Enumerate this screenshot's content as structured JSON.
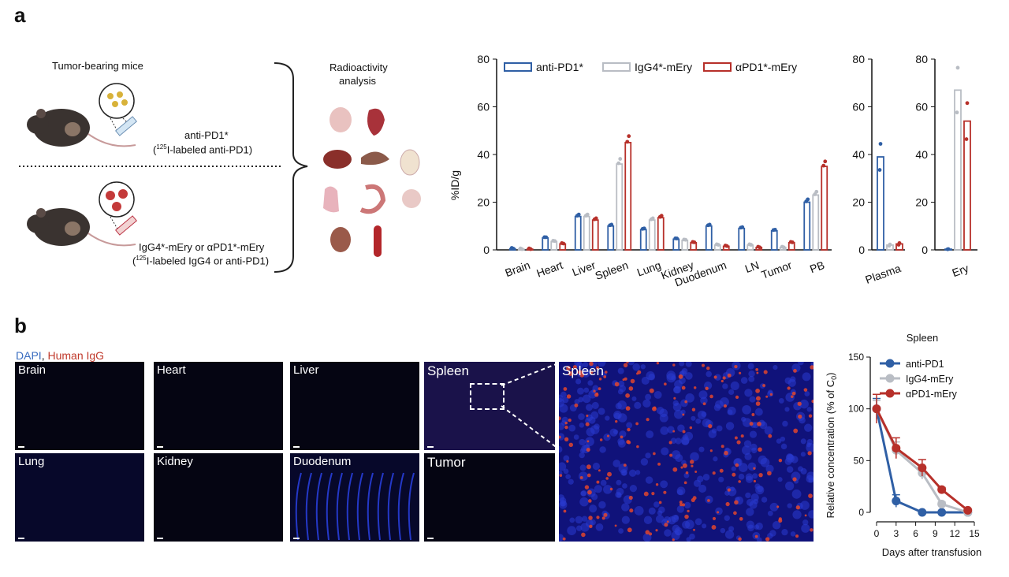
{
  "panels": {
    "a": "a",
    "b": "b"
  },
  "schematic": {
    "tumor_mice": "Tumor-bearing mice",
    "radio_line1": "Radioactivity",
    "radio_line2": "analysis",
    "anti_line1": "anti-PD1*",
    "anti_line2_pre": "(",
    "anti_line2_sup": "125",
    "anti_line2_post": "I-labeled anti-PD1)",
    "ery_line1": "IgG4*-mEry or αPD1*-mEry",
    "ery_line2_pre": "(",
    "ery_line2_sup": "125",
    "ery_line2_post": "I-labeled IgG4 or anti-PD1)"
  },
  "colors": {
    "anti": "#2f5fa5",
    "igg": "#b9bdc4",
    "apd": "#b7302a"
  },
  "chart_data": [
    {
      "type": "bar",
      "title": "",
      "ylabel": "%ID/g",
      "ylim": [
        0,
        80
      ],
      "yticks": [
        0,
        20,
        40,
        60,
        80
      ],
      "categories": [
        "Brain",
        "Heart",
        "Liver",
        "Spleen",
        "Lung",
        "Kidney",
        "Duodenum",
        "LN",
        "Tumor",
        "PB"
      ],
      "series": [
        {
          "name": "anti-PD1*",
          "values": [
            0.5,
            5,
            14,
            10,
            8.5,
            4.5,
            10,
            9,
            8,
            20
          ]
        },
        {
          "name": "IgG4*-mEry",
          "values": [
            0.3,
            3.5,
            14,
            36,
            12.5,
            4,
            2,
            2,
            1,
            23
          ]
        },
        {
          "name": "αPD1*-mEry",
          "values": [
            0.3,
            2.5,
            12.5,
            45,
            13.5,
            3,
            1.5,
            1,
            3,
            35
          ]
        }
      ]
    },
    {
      "type": "bar",
      "ylim": [
        0,
        80
      ],
      "yticks": [
        0,
        20,
        40,
        60,
        80
      ],
      "categories": [
        "Plasma"
      ],
      "series": [
        {
          "name": "anti-PD1*",
          "values": [
            39
          ]
        },
        {
          "name": "IgG4*-mEry",
          "values": [
            2
          ]
        },
        {
          "name": "αPD1*-mEry",
          "values": [
            2.5
          ]
        }
      ]
    },
    {
      "type": "bar",
      "ylim": [
        0,
        80
      ],
      "yticks": [
        0,
        20,
        40,
        60,
        80
      ],
      "categories": [
        "Ery"
      ],
      "series": [
        {
          "name": "anti-PD1*",
          "values": [
            0.3
          ]
        },
        {
          "name": "IgG4*-mEry",
          "values": [
            67
          ]
        },
        {
          "name": "αPD1*-mEry",
          "values": [
            54
          ]
        }
      ]
    },
    {
      "type": "line",
      "title": "Spleen",
      "xlabel": "Days after transfusion",
      "ylabel_pre": "Relative concentration (% of C",
      "ylabel_sub": "0",
      "ylabel_post": ")",
      "xlim": [
        0,
        15
      ],
      "ylim": [
        0,
        150
      ],
      "xticks": [
        0,
        3,
        6,
        9,
        12,
        15
      ],
      "yticks": [
        0,
        50,
        100,
        150
      ],
      "series": [
        {
          "name": "anti-PD1",
          "x": [
            0,
            3,
            7,
            10,
            14
          ],
          "y": [
            100,
            11,
            0,
            0,
            0
          ],
          "err": [
            10,
            6,
            0,
            0,
            0
          ]
        },
        {
          "name": "IgG4-mEry",
          "x": [
            0,
            3,
            7,
            10,
            14
          ],
          "y": [
            100,
            60,
            38,
            8,
            0
          ],
          "err": [
            8,
            8,
            6,
            2,
            0
          ]
        },
        {
          "name": "αPD1-mEry",
          "x": [
            0,
            3,
            7,
            10,
            14
          ],
          "y": [
            100,
            62,
            43,
            22,
            2
          ],
          "err": [
            14,
            10,
            8,
            2,
            0
          ]
        }
      ]
    }
  ],
  "microscopy": {
    "legend_dapi": "DAPI",
    "legend_sep": ", ",
    "legend_igg": "Human IgG",
    "tiles": [
      "Brain",
      "Heart",
      "Liver",
      "Spleen",
      "Lung",
      "Kidney",
      "Duodenum",
      "Tumor"
    ],
    "zoom_label": "Spleen"
  }
}
